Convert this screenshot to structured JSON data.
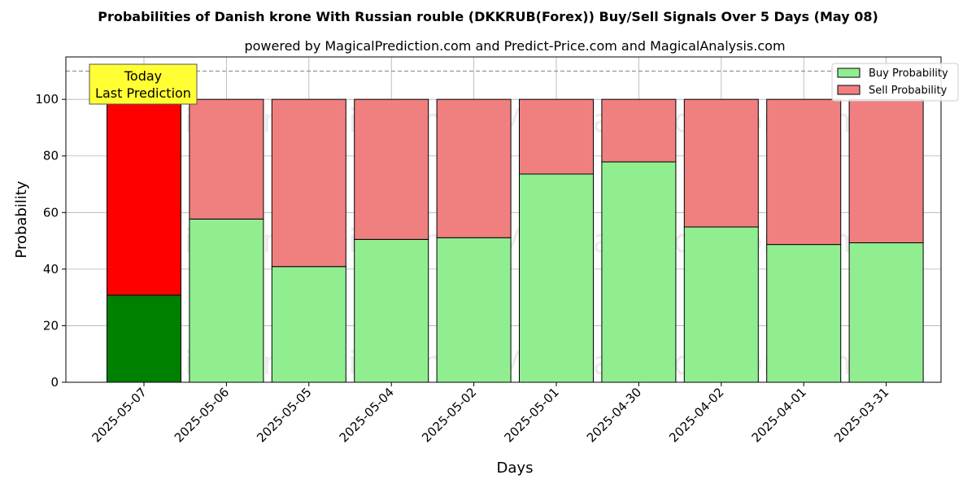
{
  "chart_data": {
    "type": "bar",
    "stacked": true,
    "title": "Probabilities of Danish krone With Russian rouble (DKKRUB(Forex)) Buy/Sell Signals Over 5 Days (May 08)",
    "subtitle": "powered by MagicalPrediction.com and Predict-Price.com and MagicalAnalysis.com",
    "xlabel": "Days",
    "ylabel": "Probability",
    "ylim": [
      0,
      115
    ],
    "yticks": [
      0,
      20,
      40,
      60,
      80,
      100
    ],
    "grid": true,
    "legend_position": "top-right",
    "categories": [
      "2025-05-07",
      "2025-05-06",
      "2025-05-05",
      "2025-05-04",
      "2025-05-02",
      "2025-05-01",
      "2025-04-30",
      "2025-04-02",
      "2025-04-01",
      "2025-03-31"
    ],
    "series": [
      {
        "name": "Buy Probability",
        "color": "#90ee90",
        "highlight_color": "#008000",
        "values": [
          30.8,
          57.7,
          40.9,
          50.5,
          51.1,
          73.6,
          77.9,
          54.9,
          48.7,
          49.3
        ]
      },
      {
        "name": "Sell Probability",
        "color": "#f08080",
        "highlight_color": "#ff0000",
        "values": [
          69.2,
          42.3,
          59.1,
          49.5,
          48.9,
          26.4,
          22.1,
          45.1,
          51.3,
          50.7
        ]
      }
    ],
    "highlight_index": 0,
    "reference_line": {
      "y": 110,
      "style": "dashed",
      "color": "#808080"
    },
    "annotation": {
      "line1": "Today",
      "line2": "Last Prediction",
      "color": "#ffff33"
    },
    "watermarks": [
      "MagicalAnalysis.com",
      "MagicalPrediction.com"
    ]
  }
}
